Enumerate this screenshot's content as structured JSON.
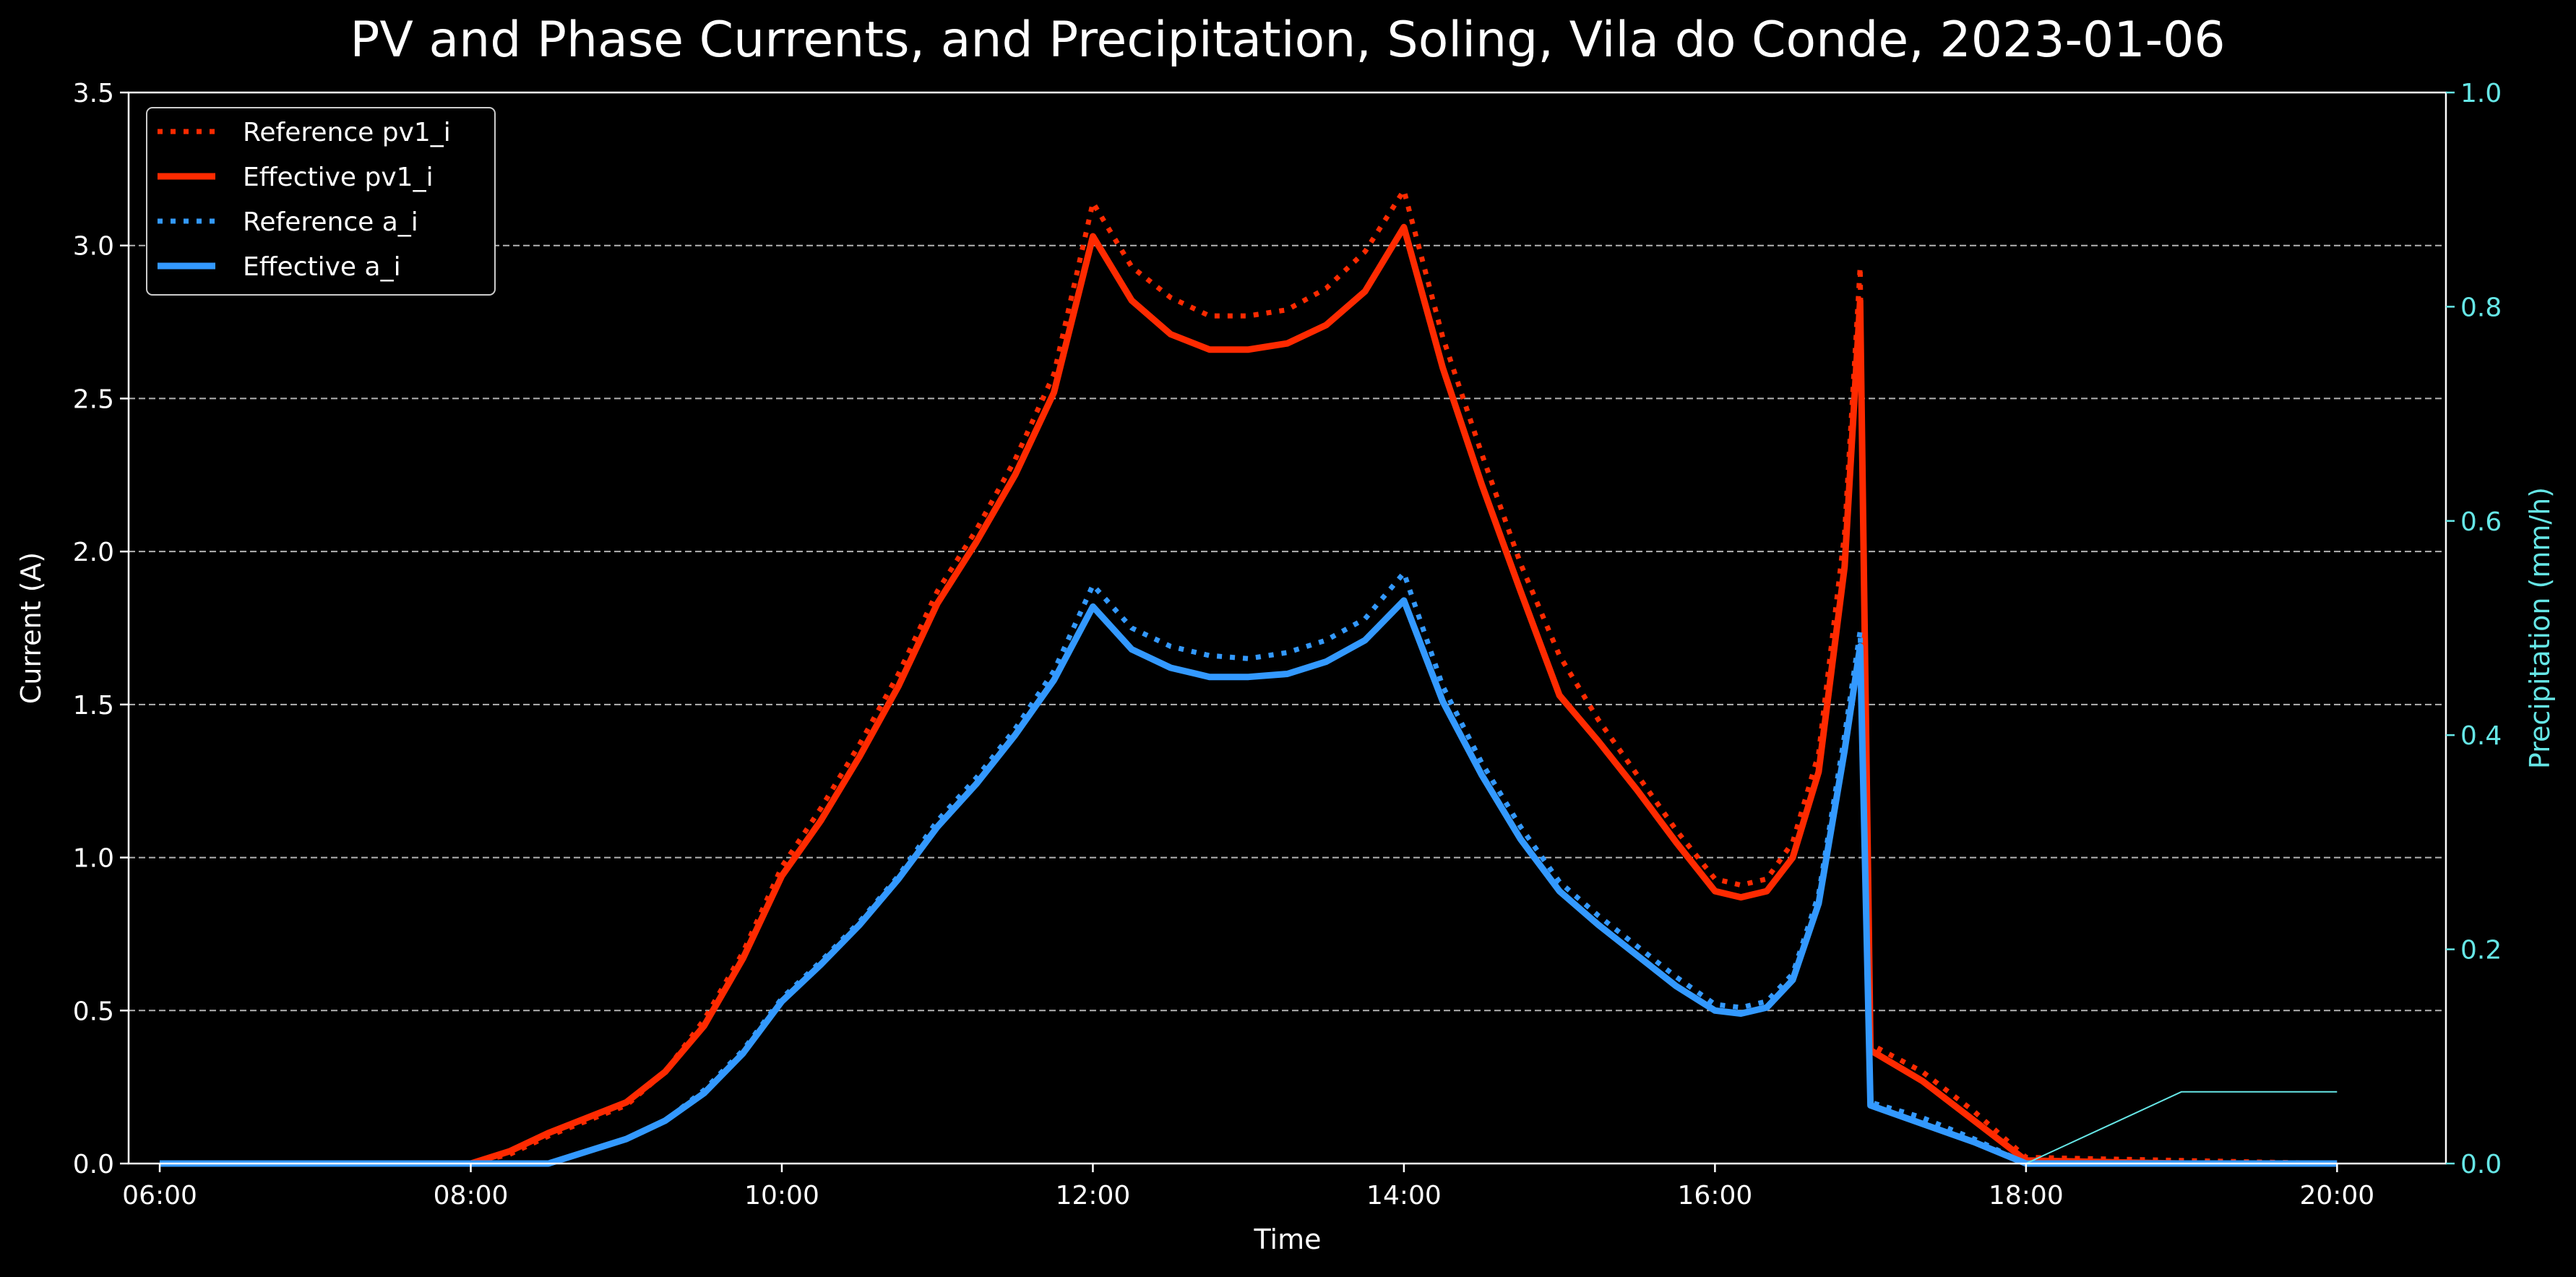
{
  "chart_data": {
    "type": "line",
    "title": "PV and Phase Currents, and Precipitation, Soling, Vila do Conde, 2023-01-06",
    "xlabel": "Time",
    "ylabel": "Current (A)",
    "y2label": "Precipitation (mm/h)",
    "x_ticks": [
      "06:00",
      "08:00",
      "10:00",
      "12:00",
      "14:00",
      "16:00",
      "18:00",
      "20:00"
    ],
    "y_ticks": [
      "0.0",
      "0.5",
      "1.0",
      "1.5",
      "2.0",
      "2.5",
      "3.0",
      "3.5"
    ],
    "y2_ticks": [
      "0.0",
      "0.2",
      "0.4",
      "0.6",
      "0.8",
      "1.0"
    ],
    "xlim": [
      "05:48",
      "20:42"
    ],
    "ylim": [
      0,
      3.5
    ],
    "y2lim": [
      0,
      1.0
    ],
    "grid": "horizontal dashed",
    "legend_position": "upper-left",
    "series": [
      {
        "name": "Reference pv1_i",
        "style": "dotted",
        "color": "#FF2A00",
        "axis": "left",
        "points": [
          [
            "06:00",
            0.0
          ],
          [
            "08:00",
            0.0
          ],
          [
            "08:15",
            0.03
          ],
          [
            "08:30",
            0.09
          ],
          [
            "09:00",
            0.19
          ],
          [
            "09:15",
            0.3
          ],
          [
            "09:30",
            0.47
          ],
          [
            "09:45",
            0.69
          ],
          [
            "10:00",
            0.97
          ],
          [
            "10:15",
            1.16
          ],
          [
            "10:30",
            1.37
          ],
          [
            "10:45",
            1.6
          ],
          [
            "11:00",
            1.87
          ],
          [
            "11:15",
            2.07
          ],
          [
            "11:30",
            2.3
          ],
          [
            "11:45",
            2.58
          ],
          [
            "12:00",
            3.14
          ],
          [
            "12:15",
            2.93
          ],
          [
            "12:30",
            2.83
          ],
          [
            "12:45",
            2.77
          ],
          [
            "13:00",
            2.77
          ],
          [
            "13:15",
            2.79
          ],
          [
            "13:30",
            2.86
          ],
          [
            "13:45",
            2.98
          ],
          [
            "14:00",
            3.18
          ],
          [
            "14:15",
            2.7
          ],
          [
            "14:30",
            2.32
          ],
          [
            "14:45",
            1.96
          ],
          [
            "15:00",
            1.66
          ],
          [
            "15:15",
            1.45
          ],
          [
            "15:30",
            1.27
          ],
          [
            "15:45",
            1.09
          ],
          [
            "16:00",
            0.93
          ],
          [
            "16:10",
            0.91
          ],
          [
            "16:20",
            0.93
          ],
          [
            "16:30",
            1.05
          ],
          [
            "16:40",
            1.34
          ],
          [
            "16:50",
            2.06
          ],
          [
            "16:56",
            2.93
          ],
          [
            "17:00",
            0.39
          ],
          [
            "17:20",
            0.3
          ],
          [
            "17:40",
            0.17
          ],
          [
            "18:00",
            0.02
          ],
          [
            "19:00",
            0.01
          ],
          [
            "20:00",
            0.0
          ]
        ]
      },
      {
        "name": "Effective pv1_i",
        "style": "solid",
        "color": "#FF2A00",
        "axis": "left",
        "points": [
          [
            "06:00",
            0.0
          ],
          [
            "08:00",
            0.0
          ],
          [
            "08:15",
            0.04
          ],
          [
            "08:30",
            0.1
          ],
          [
            "09:00",
            0.2
          ],
          [
            "09:15",
            0.3
          ],
          [
            "09:30",
            0.45
          ],
          [
            "09:45",
            0.67
          ],
          [
            "10:00",
            0.94
          ],
          [
            "10:15",
            1.12
          ],
          [
            "10:30",
            1.33
          ],
          [
            "10:45",
            1.56
          ],
          [
            "11:00",
            1.83
          ],
          [
            "11:15",
            2.03
          ],
          [
            "11:30",
            2.25
          ],
          [
            "11:45",
            2.52
          ],
          [
            "12:00",
            3.03
          ],
          [
            "12:15",
            2.82
          ],
          [
            "12:30",
            2.71
          ],
          [
            "12:45",
            2.66
          ],
          [
            "13:00",
            2.66
          ],
          [
            "13:15",
            2.68
          ],
          [
            "13:30",
            2.74
          ],
          [
            "13:45",
            2.85
          ],
          [
            "14:00",
            3.06
          ],
          [
            "14:15",
            2.6
          ],
          [
            "14:30",
            2.22
          ],
          [
            "14:45",
            1.87
          ],
          [
            "15:00",
            1.53
          ],
          [
            "15:15",
            1.38
          ],
          [
            "15:30",
            1.22
          ],
          [
            "15:45",
            1.05
          ],
          [
            "16:00",
            0.89
          ],
          [
            "16:10",
            0.87
          ],
          [
            "16:20",
            0.89
          ],
          [
            "16:30",
            1.0
          ],
          [
            "16:40",
            1.28
          ],
          [
            "16:50",
            1.95
          ],
          [
            "16:56",
            2.82
          ],
          [
            "17:00",
            0.37
          ],
          [
            "17:20",
            0.27
          ],
          [
            "17:40",
            0.14
          ],
          [
            "18:00",
            0.01
          ],
          [
            "19:00",
            0.0
          ],
          [
            "20:00",
            0.0
          ]
        ]
      },
      {
        "name": "Reference a_i",
        "style": "dotted",
        "color": "#3399FF",
        "axis": "left",
        "points": [
          [
            "06:00",
            0.0
          ],
          [
            "08:30",
            0.0
          ],
          [
            "09:00",
            0.08
          ],
          [
            "09:15",
            0.14
          ],
          [
            "09:30",
            0.24
          ],
          [
            "09:45",
            0.37
          ],
          [
            "10:00",
            0.54
          ],
          [
            "10:15",
            0.66
          ],
          [
            "10:30",
            0.79
          ],
          [
            "10:45",
            0.94
          ],
          [
            "11:00",
            1.12
          ],
          [
            "11:15",
            1.26
          ],
          [
            "11:30",
            1.42
          ],
          [
            "11:45",
            1.61
          ],
          [
            "12:00",
            1.89
          ],
          [
            "12:15",
            1.75
          ],
          [
            "12:30",
            1.69
          ],
          [
            "12:45",
            1.66
          ],
          [
            "13:00",
            1.65
          ],
          [
            "13:15",
            1.67
          ],
          [
            "13:30",
            1.71
          ],
          [
            "13:45",
            1.78
          ],
          [
            "14:00",
            1.93
          ],
          [
            "14:15",
            1.56
          ],
          [
            "14:30",
            1.31
          ],
          [
            "14:45",
            1.1
          ],
          [
            "15:00",
            0.92
          ],
          [
            "15:15",
            0.81
          ],
          [
            "15:30",
            0.71
          ],
          [
            "15:45",
            0.61
          ],
          [
            "16:00",
            0.52
          ],
          [
            "16:10",
            0.51
          ],
          [
            "16:20",
            0.53
          ],
          [
            "16:30",
            0.62
          ],
          [
            "16:40",
            0.88
          ],
          [
            "16:50",
            1.4
          ],
          [
            "16:56",
            1.74
          ],
          [
            "17:00",
            0.2
          ],
          [
            "17:20",
            0.15
          ],
          [
            "17:40",
            0.08
          ],
          [
            "18:00",
            0.0
          ],
          [
            "20:00",
            0.0
          ]
        ]
      },
      {
        "name": "Effective a_i",
        "style": "solid",
        "color": "#3399FF",
        "axis": "left",
        "points": [
          [
            "06:00",
            0.0
          ],
          [
            "08:30",
            0.0
          ],
          [
            "09:00",
            0.08
          ],
          [
            "09:15",
            0.14
          ],
          [
            "09:30",
            0.23
          ],
          [
            "09:45",
            0.36
          ],
          [
            "10:00",
            0.53
          ],
          [
            "10:15",
            0.65
          ],
          [
            "10:30",
            0.78
          ],
          [
            "10:45",
            0.93
          ],
          [
            "11:00",
            1.1
          ],
          [
            "11:15",
            1.24
          ],
          [
            "11:30",
            1.4
          ],
          [
            "11:45",
            1.58
          ],
          [
            "12:00",
            1.82
          ],
          [
            "12:15",
            1.68
          ],
          [
            "12:30",
            1.62
          ],
          [
            "12:45",
            1.59
          ],
          [
            "13:00",
            1.59
          ],
          [
            "13:15",
            1.6
          ],
          [
            "13:30",
            1.64
          ],
          [
            "13:45",
            1.71
          ],
          [
            "14:00",
            1.84
          ],
          [
            "14:15",
            1.51
          ],
          [
            "14:30",
            1.27
          ],
          [
            "14:45",
            1.06
          ],
          [
            "15:00",
            0.89
          ],
          [
            "15:15",
            0.78
          ],
          [
            "15:30",
            0.68
          ],
          [
            "15:45",
            0.58
          ],
          [
            "16:00",
            0.5
          ],
          [
            "16:10",
            0.49
          ],
          [
            "16:20",
            0.51
          ],
          [
            "16:30",
            0.6
          ],
          [
            "16:40",
            0.85
          ],
          [
            "16:50",
            1.35
          ],
          [
            "16:56",
            1.69
          ],
          [
            "17:00",
            0.19
          ],
          [
            "17:20",
            0.13
          ],
          [
            "17:40",
            0.07
          ],
          [
            "18:00",
            0.0
          ],
          [
            "20:00",
            0.0
          ]
        ]
      },
      {
        "name": "",
        "style": "solid-thin",
        "color": "#66E6E6",
        "axis": "right",
        "points": [
          [
            "18:00",
            0.0
          ],
          [
            "19:00",
            0.067
          ],
          [
            "20:00",
            0.067
          ]
        ]
      }
    ]
  }
}
